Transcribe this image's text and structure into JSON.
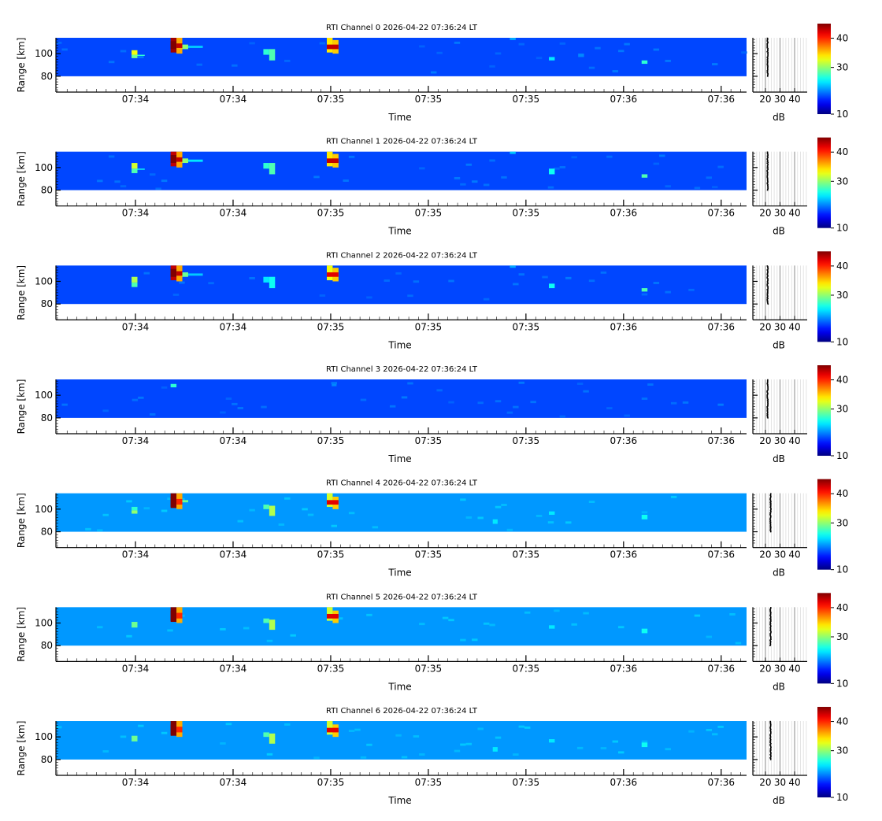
{
  "chart_data": [
    {
      "type": "heatmap",
      "title": "RTI Channel 0 2026-04-22 07:36:24 LT",
      "background_db": 20,
      "profile_db": 21.5,
      "events": [
        [
          15.5,
          1.2,
          96,
          99,
          29
        ],
        [
          15.5,
          1.2,
          99,
          103,
          33
        ],
        [
          16.7,
          1.5,
          98,
          99,
          27
        ],
        [
          23.5,
          1.2,
          101,
          114,
          44
        ],
        [
          23.5,
          1.2,
          104,
          111,
          46
        ],
        [
          24.7,
          1.2,
          100,
          114,
          36
        ],
        [
          24.7,
          1.2,
          105,
          109,
          43
        ],
        [
          25.9,
          1.2,
          104,
          108,
          30
        ],
        [
          27.1,
          3,
          105,
          107,
          24
        ],
        [
          42.5,
          1.2,
          99,
          104,
          27
        ],
        [
          43.7,
          1.2,
          94,
          104,
          28
        ],
        [
          55.5,
          1.2,
          101,
          114,
          34
        ],
        [
          56.7,
          1.2,
          100,
          112,
          35
        ],
        [
          55.5,
          2.4,
          104,
          108,
          43
        ],
        [
          93,
          1.2,
          112,
          114,
          23
        ],
        [
          101,
          1.2,
          94,
          97,
          25
        ],
        [
          107,
          1.2,
          97,
          100,
          22
        ],
        [
          120,
          1.2,
          91,
          94,
          27
        ]
      ]
    },
    {
      "type": "heatmap",
      "title": "RTI Channel 1 2026-04-22 07:36:24 LT",
      "background_db": 20,
      "profile_db": 21.5,
      "events": [
        [
          15.5,
          1.2,
          95,
          99,
          28
        ],
        [
          15.5,
          1.2,
          99,
          104,
          32
        ],
        [
          16.7,
          1.5,
          98,
          99,
          26
        ],
        [
          23.5,
          1.2,
          101,
          114,
          43
        ],
        [
          23.5,
          1.2,
          104,
          111,
          46
        ],
        [
          24.7,
          1.2,
          100,
          114,
          36
        ],
        [
          24.7,
          1.2,
          105,
          109,
          43
        ],
        [
          25.9,
          1.2,
          104,
          108,
          30
        ],
        [
          27.1,
          3,
          105,
          107,
          25
        ],
        [
          42.5,
          1.2,
          99,
          104,
          27
        ],
        [
          43.7,
          1.2,
          94,
          104,
          28
        ],
        [
          55.5,
          1.2,
          101,
          114,
          34
        ],
        [
          56.7,
          1.2,
          100,
          112,
          35
        ],
        [
          55.5,
          2.4,
          104,
          108,
          43
        ],
        [
          93,
          1.2,
          112,
          114,
          24
        ],
        [
          101,
          1.2,
          94,
          99,
          26
        ],
        [
          120,
          1.2,
          91,
          94,
          28
        ]
      ]
    },
    {
      "type": "heatmap",
      "title": "RTI Channel 2 2026-04-22 07:36:24 LT",
      "background_db": 20,
      "profile_db": 21.5,
      "events": [
        [
          15.5,
          1.2,
          95,
          99,
          28
        ],
        [
          15.5,
          1.2,
          99,
          104,
          31
        ],
        [
          23.5,
          1.2,
          101,
          114,
          43
        ],
        [
          23.5,
          1.2,
          104,
          111,
          46
        ],
        [
          24.7,
          1.2,
          100,
          114,
          36
        ],
        [
          24.7,
          1.2,
          105,
          109,
          43
        ],
        [
          25.9,
          1.2,
          104,
          108,
          29
        ],
        [
          27.1,
          3,
          105,
          107,
          24
        ],
        [
          42.5,
          1.2,
          99,
          104,
          25
        ],
        [
          43.7,
          1.2,
          94,
          104,
          26
        ],
        [
          55.5,
          1.2,
          101,
          114,
          33
        ],
        [
          56.7,
          1.2,
          100,
          112,
          35
        ],
        [
          55.5,
          2.4,
          104,
          108,
          42
        ],
        [
          93,
          1.2,
          112,
          114,
          23
        ],
        [
          101,
          1.2,
          94,
          98,
          26
        ],
        [
          120,
          1.2,
          91,
          94,
          28
        ]
      ]
    },
    {
      "type": "heatmap",
      "title": "RTI Channel 3 2026-04-22 07:36:24 LT",
      "background_db": 20,
      "profile_db": 21.5,
      "events": [
        [
          23.5,
          1.2,
          107,
          110,
          27
        ],
        [
          56.5,
          1.0,
          108,
          110,
          22
        ]
      ]
    },
    {
      "type": "heatmap",
      "title": "RTI Channel 4 2026-04-22 07:36:24 LT",
      "background_db": 22.5,
      "profile_db": 23.5,
      "events": [
        [
          15.5,
          1.2,
          96,
          99,
          30
        ],
        [
          15.5,
          1.2,
          99,
          102,
          27
        ],
        [
          23.5,
          1.2,
          101,
          114,
          45
        ],
        [
          23.5,
          1.2,
          102,
          111,
          46
        ],
        [
          24.7,
          1.2,
          100,
          114,
          36
        ],
        [
          24.7,
          1.2,
          104,
          109,
          40
        ],
        [
          25.9,
          1.2,
          106,
          108,
          29
        ],
        [
          42.5,
          1.2,
          100,
          104,
          28
        ],
        [
          43.7,
          1.2,
          94,
          103,
          31
        ],
        [
          55.5,
          1.2,
          102,
          114,
          32
        ],
        [
          56.7,
          1.2,
          100,
          111,
          35
        ],
        [
          55.5,
          2.4,
          104,
          108,
          42
        ],
        [
          101,
          1.2,
          95,
          98,
          25
        ],
        [
          120,
          1.2,
          91,
          95,
          26
        ],
        [
          89.5,
          1.0,
          87,
          91,
          25
        ]
      ]
    },
    {
      "type": "heatmap",
      "title": "RTI Channel 5 2026-04-22 07:36:24 LT",
      "background_db": 22.5,
      "profile_db": 23.5,
      "events": [
        [
          15.5,
          1.2,
          96,
          101,
          29
        ],
        [
          23.5,
          1.2,
          101,
          114,
          45
        ],
        [
          23.5,
          1.2,
          102,
          111,
          46
        ],
        [
          24.7,
          1.2,
          100,
          114,
          36
        ],
        [
          24.7,
          1.2,
          104,
          109,
          40
        ],
        [
          42.5,
          1.2,
          100,
          104,
          28
        ],
        [
          43.7,
          1.2,
          94,
          103,
          31
        ],
        [
          55.5,
          1.2,
          102,
          114,
          32
        ],
        [
          56.7,
          1.2,
          100,
          111,
          35
        ],
        [
          55.5,
          2.4,
          104,
          108,
          42
        ],
        [
          101,
          1.2,
          95,
          98,
          25
        ],
        [
          120,
          1.2,
          91,
          95,
          26
        ]
      ]
    },
    {
      "type": "heatmap",
      "title": "RTI Channel 6 2026-04-22 07:36:24 LT",
      "background_db": 22.5,
      "profile_db": 23.5,
      "events": [
        [
          15.5,
          1.2,
          96,
          101,
          29
        ],
        [
          23.5,
          1.2,
          101,
          114,
          45
        ],
        [
          23.5,
          1.2,
          102,
          111,
          46
        ],
        [
          24.7,
          1.2,
          100,
          114,
          36
        ],
        [
          24.7,
          1.2,
          104,
          109,
          40
        ],
        [
          42.5,
          1.2,
          100,
          104,
          28
        ],
        [
          43.7,
          1.2,
          94,
          103,
          31
        ],
        [
          55.5,
          1.2,
          102,
          114,
          32
        ],
        [
          56.7,
          1.2,
          100,
          111,
          35
        ],
        [
          55.5,
          2.4,
          104,
          108,
          42
        ],
        [
          101,
          1.2,
          95,
          98,
          25
        ],
        [
          120,
          1.2,
          91,
          95,
          26
        ],
        [
          89.5,
          1.0,
          87,
          91,
          25
        ]
      ]
    }
  ],
  "axes": {
    "xlabel": "Time",
    "ylabel": "Range [km]",
    "xlim_s": [
      0,
      141.5
    ],
    "xticks_s": [
      16.3,
      36.3,
      56.3,
      76.3,
      96.3,
      116.3,
      136.3
    ],
    "xtick_labels": [
      "07:34",
      "07:34",
      "07:35",
      "07:35",
      "07:35",
      "07:36",
      "07:36"
    ],
    "ylim": [
      66,
      114
    ],
    "data_range": [
      80,
      114
    ],
    "yticks": [
      80,
      100
    ],
    "spectrum_xlabel": "dB",
    "spectrum_xlim": [
      11.4,
      48.6
    ],
    "spectrum_xticks": [
      20,
      30,
      40
    ],
    "colorbar_clim": [
      14,
      45
    ],
    "colorbar_ticks": [
      10,
      30,
      40
    ]
  }
}
